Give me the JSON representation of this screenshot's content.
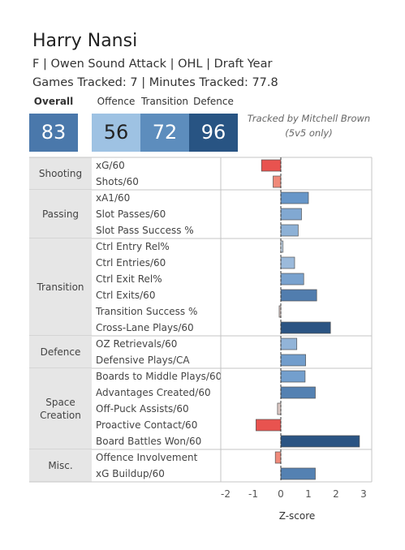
{
  "header": {
    "player_name": "Harry Nansi",
    "subtitle": "F | Owen Sound Attack | OHL | Draft Year",
    "tracked": "Games Tracked: 7 | Minutes Tracked: 77.8",
    "tracked_by_line1": "Tracked by Mitchell Brown",
    "tracked_by_line2": "(5v5 only)"
  },
  "scores": {
    "overall": {
      "label": "Overall",
      "value": "83",
      "color": "#4a78ab"
    },
    "offence": {
      "label": "Offence",
      "value": "56",
      "color": "#9ec2e3"
    },
    "transition": {
      "label": "Transition",
      "value": "72",
      "color": "#5d8dbd"
    },
    "defence": {
      "label": "Defence",
      "value": "96",
      "color": "#285483"
    }
  },
  "chart_data": {
    "type": "bar",
    "orientation": "horizontal",
    "xlabel": "Z-score",
    "xlim": [
      -2,
      3
    ],
    "xticks": [
      -2,
      -1,
      0,
      1,
      2,
      3
    ],
    "groups": [
      {
        "name": "Shooting",
        "metrics": [
          {
            "label": "xG/60",
            "value": -0.7
          },
          {
            "label": "Shots/60",
            "value": -0.28
          }
        ]
      },
      {
        "name": "Passing",
        "metrics": [
          {
            "label": "xA1/60",
            "value": 1.0
          },
          {
            "label": "Slot Passes/60",
            "value": 0.75
          },
          {
            "label": "Slot Pass Success %",
            "value": 0.63
          }
        ]
      },
      {
        "name": "Transition",
        "metrics": [
          {
            "label": "Ctrl Entry Rel%",
            "value": 0.08
          },
          {
            "label": "Ctrl Entries/60",
            "value": 0.5
          },
          {
            "label": "Ctrl Exit Rel%",
            "value": 0.83
          },
          {
            "label": "Ctrl Exits/60",
            "value": 1.3
          },
          {
            "label": "Transition Success %",
            "value": -0.06
          },
          {
            "label": "Cross-Lane Plays/60",
            "value": 1.8
          }
        ]
      },
      {
        "name": "Defence",
        "metrics": [
          {
            "label": "OZ Retrievals/60",
            "value": 0.58
          },
          {
            "label": "Defensive Plays/CA",
            "value": 0.9
          }
        ]
      },
      {
        "name": "Space Creation",
        "metrics": [
          {
            "label": "Boards to Middle Plays/60",
            "value": 0.88
          },
          {
            "label": "Advantages Created/60",
            "value": 1.25
          },
          {
            "label": "Off-Puck Assists/60",
            "value": -0.12
          },
          {
            "label": "Proactive Contact/60",
            "value": -0.9
          },
          {
            "label": "Board Battles Won/60",
            "value": 2.85
          }
        ]
      },
      {
        "name": "Misc.",
        "metrics": [
          {
            "label": "Offence Involvement",
            "value": -0.2
          },
          {
            "label": "xG Buildup/60",
            "value": 1.25
          }
        ]
      }
    ]
  }
}
